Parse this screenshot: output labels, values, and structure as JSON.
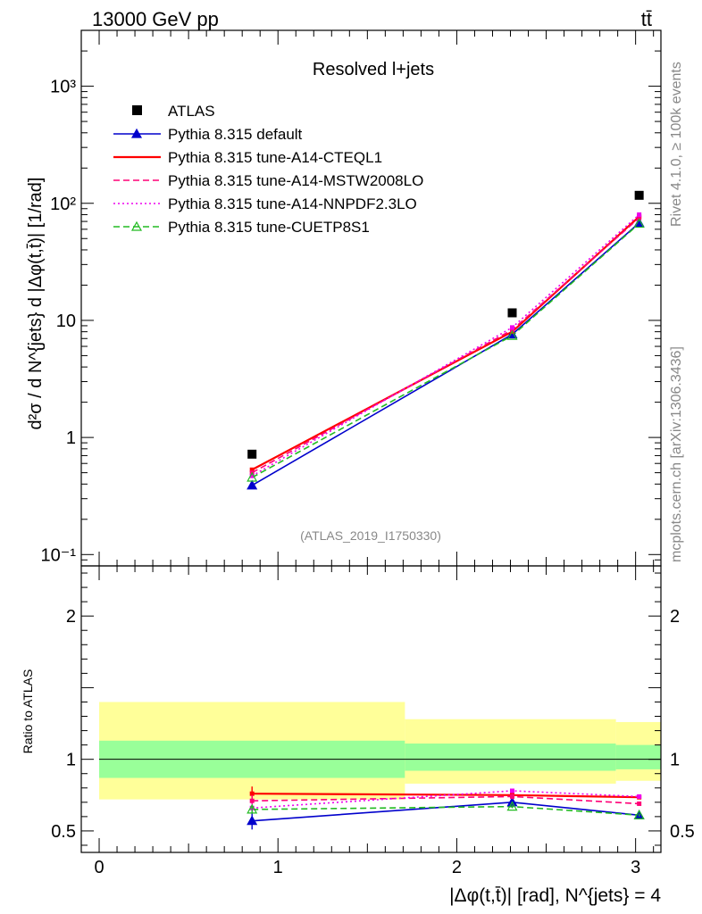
{
  "header": {
    "left": "13000 GeV pp",
    "right": "tt̄"
  },
  "side_labels": {
    "rivet": "Rivet 4.1.0, ≥ 100k events",
    "mcplots": "mcplots.cern.ch [arXiv:1306.3436]"
  },
  "chart_data": [
    {
      "type": "line",
      "panel": "main",
      "title": "Resolved l+jets",
      "analysis_id": "(ATLAS_2019_I1750330)",
      "ylabel": "d²σ / d N^{jets} d |Δφ(t,t̄)| [1/rad]",
      "yscale": "log",
      "ylim": [
        0.08,
        3000
      ],
      "xlim": [
        -0.1,
        3.1416
      ],
      "y_tick_labels": [
        "10⁻¹",
        "1",
        "10",
        "10²",
        "10³"
      ],
      "legend": [
        "ATLAS",
        "Pythia 8.315 default",
        "Pythia 8.315 tune-A14-CTEQL1",
        "Pythia 8.315 tune-A14-MSTW2008LO",
        "Pythia 8.315 tune-A14-NNPDF2.3LO",
        "Pythia 8.315 tune-CUETP8S1"
      ],
      "x": [
        0.855,
        2.31,
        3.02
      ],
      "series": [
        {
          "name": "ATLAS",
          "values": [
            0.72,
            11.6,
            117
          ],
          "color": "#000000",
          "style": "marker"
        },
        {
          "name": "Pythia 8.315 default",
          "values": [
            0.39,
            7.6,
            68
          ],
          "color": "#0000cc",
          "style": "solid-triangle"
        },
        {
          "name": "Pythia 8.315 tune-A14-CTEQL1",
          "values": [
            0.53,
            8.0,
            77
          ],
          "color": "#ff0000",
          "style": "solid"
        },
        {
          "name": "Pythia 8.315 tune-A14-MSTW2008LO",
          "values": [
            0.5,
            8.3,
            75
          ],
          "color": "#ff0077",
          "style": "dashed"
        },
        {
          "name": "Pythia 8.315 tune-A14-NNPDF2.3LO",
          "values": [
            0.47,
            8.7,
            80
          ],
          "color": "#ee00ee",
          "style": "dotted"
        },
        {
          "name": "Pythia 8.315 tune-CUETP8S1",
          "values": [
            0.455,
            7.4,
            67
          ],
          "color": "#22bb22",
          "style": "dashed-open-triangle"
        }
      ]
    },
    {
      "type": "line",
      "panel": "ratio",
      "ylabel": "Ratio to ATLAS",
      "xlabel": "|Δφ(t,t̄)| [rad], N^{jets} = 4",
      "ylim": [
        0.35,
        2.35
      ],
      "xlim": [
        -0.1,
        3.1416
      ],
      "x_tick_labels": [
        "0",
        "1",
        "2",
        "3"
      ],
      "y_tick_labels": [
        "0.5",
        "1",
        "2"
      ],
      "bands": [
        {
          "xlo": 0.0,
          "xhi": 1.71,
          "yellow": [
            0.72,
            1.4
          ],
          "green": [
            0.87,
            1.13
          ]
        },
        {
          "xlo": 1.71,
          "xhi": 2.89,
          "yellow": [
            0.83,
            1.28
          ],
          "green": [
            0.92,
            1.11
          ]
        },
        {
          "xlo": 2.89,
          "xhi": 3.1416,
          "yellow": [
            0.85,
            1.26
          ],
          "green": [
            0.93,
            1.1
          ]
        }
      ],
      "x": [
        0.855,
        2.31,
        3.02
      ],
      "series": [
        {
          "name": "Pythia 8.315 default",
          "values": [
            0.57,
            0.7,
            0.61
          ],
          "err": [
            0.06,
            0.015,
            0.01
          ]
        },
        {
          "name": "Pythia 8.315 tune-A14-CTEQL1",
          "values": [
            0.76,
            0.75,
            0.735
          ],
          "err": [
            0.05,
            0.02,
            0.012
          ]
        },
        {
          "name": "Pythia 8.315 tune-A14-MSTW2008LO",
          "values": [
            0.71,
            0.74,
            0.69
          ],
          "err": [
            0.04,
            0.02,
            0.012
          ]
        },
        {
          "name": "Pythia 8.315 tune-A14-NNPDF2.3LO",
          "values": [
            0.66,
            0.78,
            0.74
          ],
          "err": [
            0.03,
            0.015,
            0.012
          ]
        },
        {
          "name": "Pythia 8.315 tune-CUETP8S1",
          "values": [
            0.65,
            0.67,
            0.61
          ],
          "err": [
            0.03,
            0.012,
            0.01
          ]
        }
      ]
    }
  ]
}
